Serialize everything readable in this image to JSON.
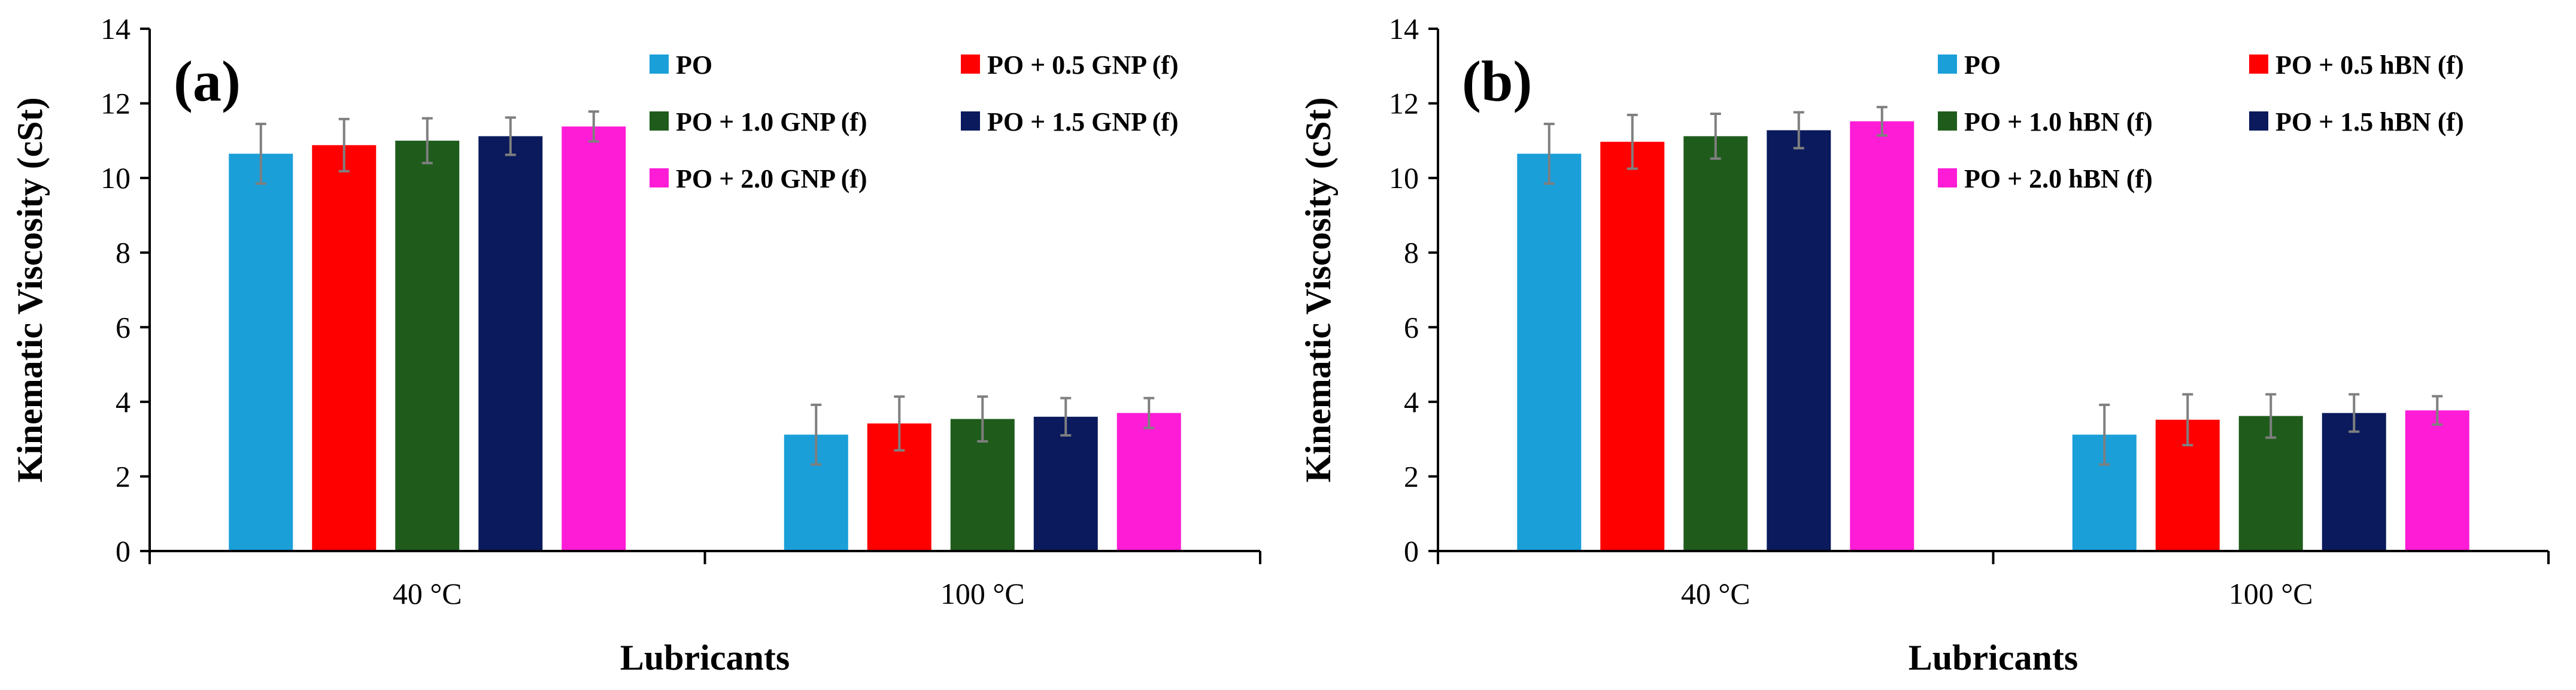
{
  "colors": {
    "po": "#1a9fd9",
    "f05": "#ff0000",
    "f10": "#1f5c1c",
    "f15": "#0a1a5c",
    "f20": "#ff1cd6",
    "errorbar": "#7f7f7f",
    "axis": "#000000"
  },
  "chart_data": [
    {
      "type": "bar",
      "panel_label": "(a)",
      "xlabel": "Lubricants",
      "ylabel": "Kinematic Viscosity (cSt)",
      "ylim": [
        0,
        14
      ],
      "yticks": [
        "0",
        "2",
        "4",
        "6",
        "8",
        "10",
        "12",
        "14"
      ],
      "categories": [
        "40  °C",
        "100 °C"
      ],
      "legend_position": "top-right",
      "grid": false,
      "series": [
        {
          "name": "PO",
          "color_key": "po",
          "values": [
            10.65,
            3.12
          ],
          "errors": [
            0.8,
            0.8
          ]
        },
        {
          "name": "PO + 0.5 GNP (f)",
          "color_key": "f05",
          "values": [
            10.88,
            3.42
          ],
          "errors": [
            0.7,
            0.72
          ]
        },
        {
          "name": "PO + 1.0 GNP (f)",
          "color_key": "f10",
          "values": [
            11.0,
            3.54
          ],
          "errors": [
            0.6,
            0.6
          ]
        },
        {
          "name": "PO  + 1.5 GNP (f)",
          "color_key": "f15",
          "values": [
            11.12,
            3.6
          ],
          "errors": [
            0.5,
            0.5
          ]
        },
        {
          "name": "PO + 2.0 GNP (f)",
          "color_key": "f20",
          "values": [
            11.38,
            3.7
          ],
          "errors": [
            0.4,
            0.4
          ]
        }
      ]
    },
    {
      "type": "bar",
      "panel_label": "(b)",
      "xlabel": "Lubricants",
      "ylabel": "Kinematic Viscosity (cSt)",
      "ylim": [
        0,
        14
      ],
      "yticks": [
        "0",
        "2",
        "4",
        "6",
        "8",
        "10",
        "12",
        "14"
      ],
      "categories": [
        "40 °C",
        "100 °C"
      ],
      "legend_position": "top-right",
      "grid": false,
      "series": [
        {
          "name": "PO",
          "color_key": "po",
          "values": [
            10.65,
            3.12
          ],
          "errors": [
            0.8,
            0.8
          ]
        },
        {
          "name": "PO + 0.5 hBN (f)",
          "color_key": "f05",
          "values": [
            10.97,
            3.52
          ],
          "errors": [
            0.72,
            0.68
          ]
        },
        {
          "name": "PO + 1.0 hBN (f)",
          "color_key": "f10",
          "values": [
            11.12,
            3.62
          ],
          "errors": [
            0.6,
            0.58
          ]
        },
        {
          "name": "PO  + 1.5 hBN (f)",
          "color_key": "f15",
          "values": [
            11.28,
            3.7
          ],
          "errors": [
            0.48,
            0.5
          ]
        },
        {
          "name": "PO + 2.0 hBN (f)",
          "color_key": "f20",
          "values": [
            11.52,
            3.77
          ],
          "errors": [
            0.38,
            0.38
          ]
        }
      ]
    }
  ]
}
